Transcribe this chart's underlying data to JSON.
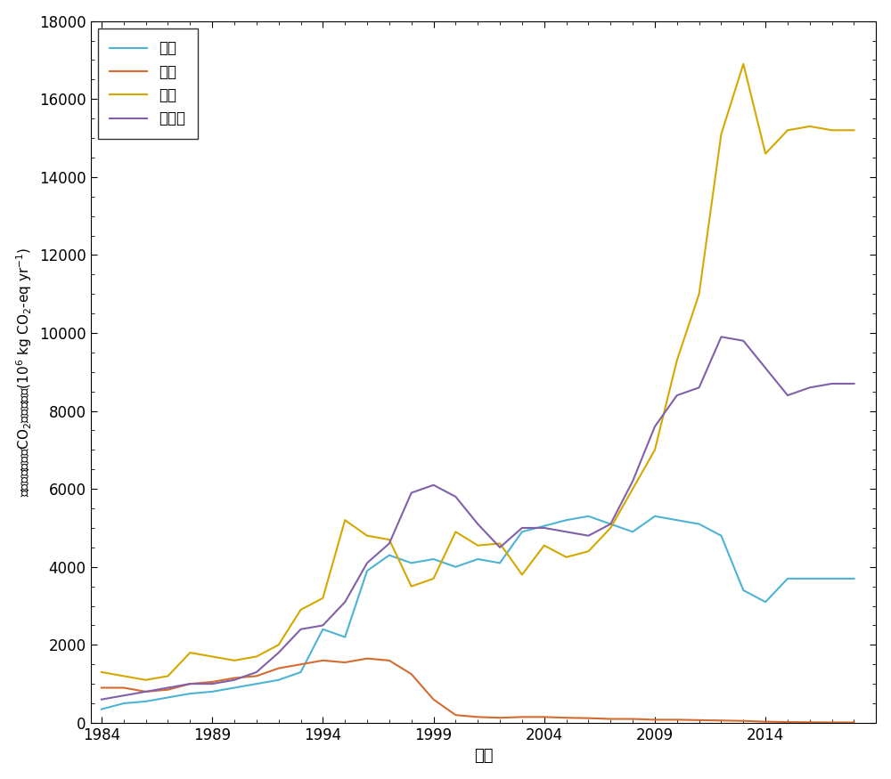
{
  "years": [
    1984,
    1985,
    1986,
    1987,
    1988,
    1989,
    1990,
    1991,
    1992,
    1993,
    1994,
    1995,
    1996,
    1997,
    1998,
    1999,
    2000,
    2001,
    2002,
    2003,
    2004,
    2005,
    2006,
    2007,
    2008,
    2009,
    2010,
    2011,
    2012,
    2013,
    2014,
    2015,
    2016,
    2017,
    2018
  ],
  "soybean": [
    350,
    500,
    550,
    650,
    750,
    800,
    900,
    1000,
    1100,
    1300,
    2400,
    2200,
    3900,
    4300,
    4100,
    4200,
    4000,
    4200,
    4100,
    4900,
    5050,
    5200,
    5300,
    5100,
    4900,
    5300,
    5200,
    5100,
    4800,
    3400,
    3100,
    3700,
    3700,
    3700,
    3700
  ],
  "wheat": [
    900,
    900,
    800,
    850,
    1000,
    1050,
    1150,
    1200,
    1400,
    1500,
    1600,
    1550,
    1650,
    1600,
    1250,
    600,
    200,
    150,
    130,
    150,
    150,
    130,
    120,
    100,
    100,
    80,
    80,
    70,
    60,
    50,
    30,
    20,
    15,
    10,
    10
  ],
  "maize": [
    1300,
    1200,
    1100,
    1200,
    1800,
    1700,
    1600,
    1700,
    2000,
    2900,
    3200,
    5200,
    4800,
    4700,
    3500,
    3700,
    4900,
    4550,
    4600,
    3800,
    4550,
    4250,
    4400,
    5000,
    6000,
    7000,
    9300,
    11000,
    15100,
    16900,
    14600,
    15200,
    15300,
    15200,
    15200
  ],
  "single_rice": [
    600,
    700,
    800,
    900,
    1000,
    1000,
    1100,
    1300,
    1800,
    2400,
    2500,
    3100,
    4100,
    4600,
    5900,
    6100,
    5800,
    5100,
    4500,
    5000,
    5000,
    4900,
    4800,
    5100,
    6200,
    7600,
    8400,
    8600,
    9900,
    9800,
    9100,
    8400,
    8600,
    8700,
    8700
  ],
  "colors": {
    "soybean": "#4db3d4",
    "wheat": "#d46b30",
    "maize": "#d4a800",
    "single_rice": "#8060a8"
  },
  "labels": {
    "soybean": "大豆",
    "wheat": "小麦",
    "maize": "玉米",
    "single_rice": "单季稻"
  },
  "xlabel": "年份",
  "xlim": [
    1983.5,
    2019
  ],
  "ylim": [
    0,
    18000
  ],
  "yticks": [
    0,
    2000,
    4000,
    6000,
    8000,
    10000,
    12000,
    14000,
    16000,
    18000
  ],
  "xticks": [
    1984,
    1989,
    1994,
    1999,
    2004,
    2009,
    2014
  ],
  "line_width": 1.5,
  "background_color": "#ffffff",
  "legend_loc": "upper left"
}
